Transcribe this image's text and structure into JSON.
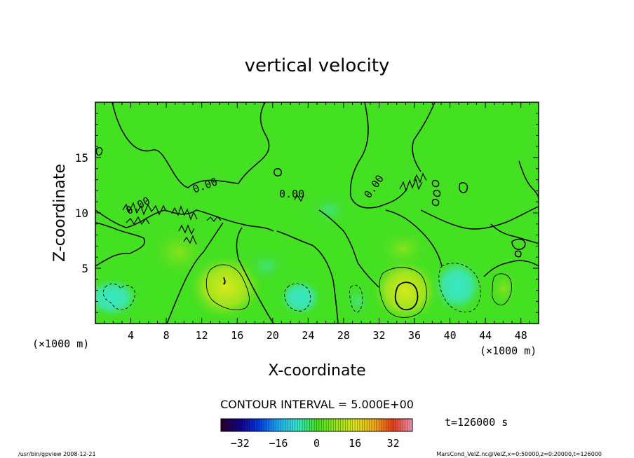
{
  "chart_data": {
    "type": "heatmap",
    "title": "vertical velocity",
    "xlabel": "X-coordinate",
    "ylabel": "Z-coordinate",
    "x_unit_left": "(×1000 m)",
    "x_unit_right": "(×1000 m)",
    "x_ticks": [
      4,
      8,
      12,
      16,
      20,
      24,
      28,
      32,
      36,
      40,
      44,
      48
    ],
    "y_ticks": [
      5,
      10,
      15
    ],
    "xlim": [
      0,
      50
    ],
    "ylim": [
      0,
      20
    ],
    "contour_labels": [
      "0.00",
      "0.00",
      "0.00",
      "0.00"
    ],
    "contour_interval_text": "CONTOUR INTERVAL = 5.000E+00",
    "colorbar": {
      "ticks": [
        "−32",
        "−16",
        "0",
        "16",
        "32"
      ],
      "tick_values": [
        -32,
        -16,
        0,
        16,
        32
      ],
      "range": [
        -40,
        40
      ]
    },
    "time_text": "t=126000 s",
    "footer_left": "/usr/bin/gpview   2008-12-21",
    "footer_right": "MarsCond_VelZ.nc@VelZ,x=0:50000,z=0:20000,t=126000",
    "colors": {
      "background_field": "#44e022",
      "updraft": "#b4e61e",
      "downdraft": "#3ee6b4"
    }
  }
}
